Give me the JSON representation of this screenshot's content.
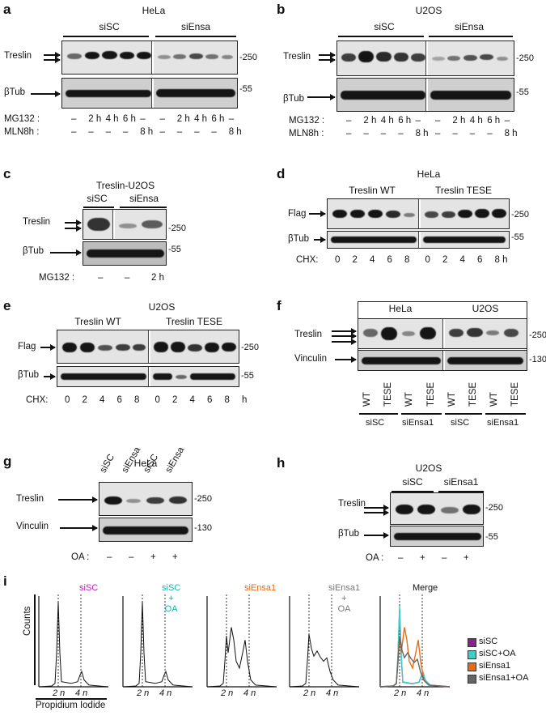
{
  "panels": {
    "a": {
      "label": "a",
      "title": "HeLa",
      "groups": [
        "siSC",
        "siEnsa"
      ],
      "row1": "Treslin",
      "row2": "βTub",
      "mw1": "-250",
      "mw2": "-55",
      "cond1_label": "MG132 :",
      "cond1": [
        "–",
        "2 h",
        "4 h",
        "6 h",
        "–",
        "–",
        "2 h",
        "4 h",
        "6 h",
        "–"
      ],
      "cond2_label": "MLN8h :",
      "cond2": [
        "–",
        "–",
        "–",
        "–",
        "8 h",
        "–",
        "–",
        "–",
        "–",
        "8 h"
      ]
    },
    "b": {
      "label": "b",
      "title": "U2OS",
      "groups": [
        "siSC",
        "siEnsa"
      ],
      "row1": "Treslin",
      "row2": "βTub",
      "mw1": "-250",
      "mw2": "-55",
      "cond1_label": "MG132 :",
      "cond1": [
        "–",
        "2 h",
        "4 h",
        "6 h",
        "–",
        "–",
        "2 h",
        "4 h",
        "6 h",
        "–"
      ],
      "cond2_label": "MLN8h :",
      "cond2": [
        "–",
        "–",
        "–",
        "–",
        "8 h",
        "–",
        "–",
        "–",
        "–",
        "8 h"
      ]
    },
    "c": {
      "label": "c",
      "title": "Treslin-U2OS",
      "groups": [
        "siSC",
        "siEnsa"
      ],
      "row1": "Treslin",
      "row2": "βTub",
      "mw1": "-250",
      "mw2": "-55",
      "cond1_label": "MG132 :",
      "cond1": [
        "–",
        "–",
        "2 h"
      ]
    },
    "d": {
      "label": "d",
      "title": "HeLa",
      "groups": [
        "Treslin WT",
        "Treslin TESE"
      ],
      "row1": "Flag",
      "row2": "βTub",
      "mw1": "-250",
      "mw2": "-55",
      "cond1_label": "CHX:",
      "cond1": [
        "0",
        "2",
        "4",
        "6",
        "8",
        "0",
        "2",
        "4",
        "6",
        "8 h"
      ]
    },
    "e": {
      "label": "e",
      "title": "U2OS",
      "groups": [
        "Treslin WT",
        "Treslin TESE"
      ],
      "row1": "Flag",
      "row2": "βTub",
      "mw1": "-250",
      "mw2": "-55",
      "cond1_label": "CHX:",
      "cond1": [
        "0",
        "2",
        "4",
        "6",
        "8",
        "0",
        "2",
        "4",
        "6",
        "8",
        "h"
      ]
    },
    "f": {
      "label": "f",
      "cells": [
        "HeLa",
        "U2OS"
      ],
      "row1": "Treslin",
      "row2": "Vinculin",
      "mw1": "-250",
      "mw2": "-130",
      "lanes": [
        "WT",
        "TESE",
        "WT",
        "TESE",
        "WT",
        "TESE",
        "WT",
        "TESE"
      ],
      "groups": [
        "siSC",
        "siEnsa1",
        "siSC",
        "siEnsa1"
      ]
    },
    "g": {
      "label": "g",
      "title": "HeLa",
      "lanes": [
        "siSC",
        "siEnsa",
        "siSC",
        "siEnsa"
      ],
      "row1": "Treslin",
      "row2": "Vinculin",
      "mw1": "-250",
      "mw2": "-130",
      "cond1_label": "OA :",
      "cond1": [
        "–",
        "–",
        "+",
        "+"
      ]
    },
    "h": {
      "label": "h",
      "title": "U2OS",
      "groups": [
        "siSC",
        "siEnsa1"
      ],
      "row1": "Treslin",
      "row2": "βTub",
      "mw1": "-250",
      "mw2": "-55",
      "cond1_label": "OA :",
      "cond1": [
        "–",
        "+",
        "–",
        "+"
      ]
    },
    "i": {
      "label": "i",
      "ylabel": "Counts",
      "xlabel": "Propidium Iodide",
      "tick_2n": "2 n",
      "tick_4n": "4 n",
      "histograms": [
        {
          "title": "siSC",
          "color": "#c21fc2"
        },
        {
          "title": "siSC\n+\nOA",
          "color": "#17b3b0"
        },
        {
          "title": "siEnsa1",
          "color": "#e86a16"
        },
        {
          "title": "siEnsa1\n+\nOA",
          "color": "#777777"
        },
        {
          "title": "Merge",
          "color": "#111111"
        }
      ],
      "legend": [
        {
          "label": "siSC",
          "color": "#8e1f8e"
        },
        {
          "label": "siSC+OA",
          "color": "#3ccfc7"
        },
        {
          "label": "siEnsa1",
          "color": "#ea6b13"
        },
        {
          "label": "siEnsa1+OA",
          "color": "#666666"
        }
      ]
    }
  }
}
